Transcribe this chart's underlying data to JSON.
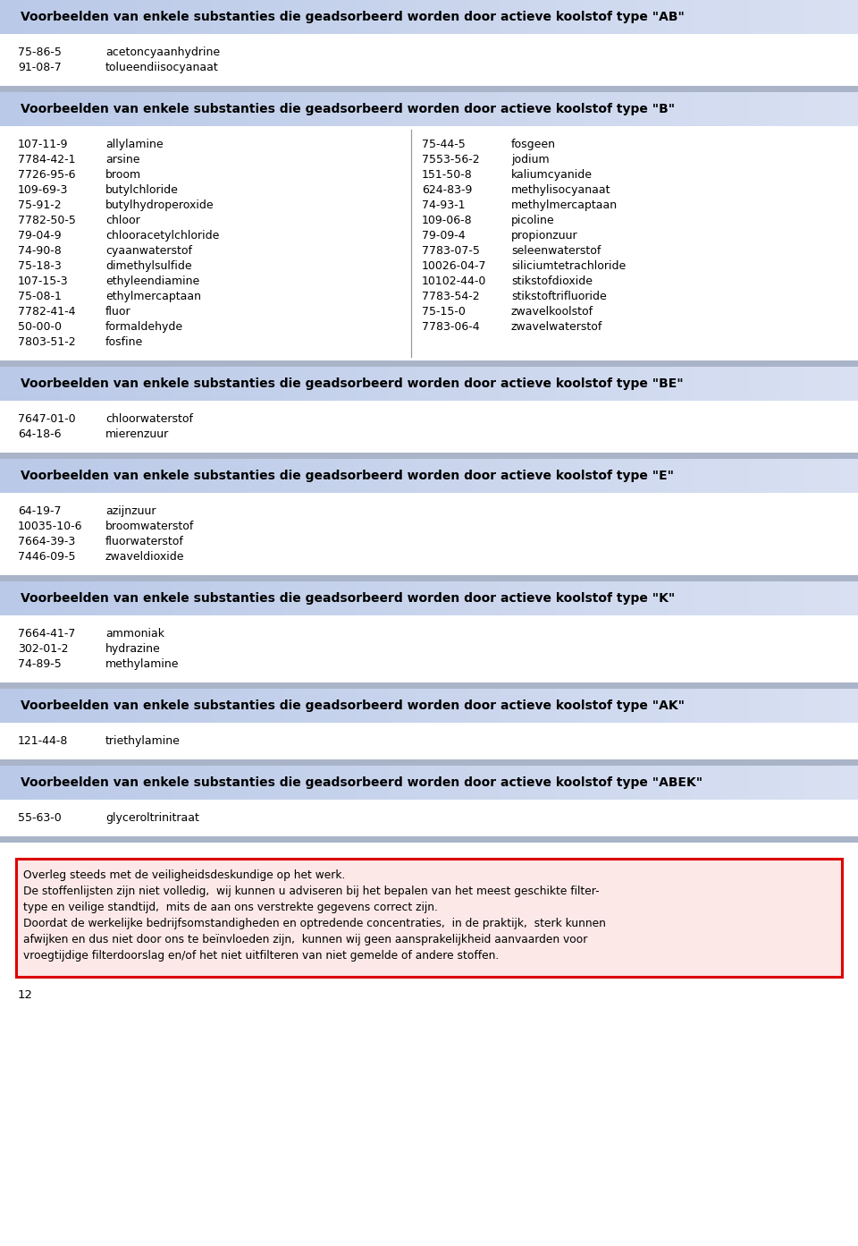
{
  "sections": [
    {
      "title": "Voorbeelden van enkele substanties die geadsorbeerd worden door actieve koolstof type \"AB\"",
      "two_columns": false,
      "items_left": [
        [
          "75-86-5",
          "acetoncyaanhydrine"
        ],
        [
          "91-08-7",
          "tolueendiisocyanaat"
        ]
      ],
      "items_right": []
    },
    {
      "title": "Voorbeelden van enkele substanties die geadsorbeerd worden door actieve koolstof type \"B\"",
      "two_columns": true,
      "items_left": [
        [
          "107-11-9",
          "allylamine"
        ],
        [
          "7784-42-1",
          "arsine"
        ],
        [
          "7726-95-6",
          "broom"
        ],
        [
          "109-69-3",
          "butylchloride"
        ],
        [
          "75-91-2",
          "butylhydroperoxide"
        ],
        [
          "7782-50-5",
          "chloor"
        ],
        [
          "79-04-9",
          "chlooracetylchloride"
        ],
        [
          "74-90-8",
          "cyaanwaterstof"
        ],
        [
          "75-18-3",
          "dimethylsulfide"
        ],
        [
          "107-15-3",
          "ethyleendiamine"
        ],
        [
          "75-08-1",
          "ethylmercaptaan"
        ],
        [
          "7782-41-4",
          "fluor"
        ],
        [
          "50-00-0",
          "formaldehyde"
        ],
        [
          "7803-51-2",
          "fosfine"
        ]
      ],
      "items_right": [
        [
          "75-44-5",
          "fosgeen"
        ],
        [
          "7553-56-2",
          "jodium"
        ],
        [
          "151-50-8",
          "kaliumcyanide"
        ],
        [
          "624-83-9",
          "methylisocyanaat"
        ],
        [
          "74-93-1",
          "methylmercaptaan"
        ],
        [
          "109-06-8",
          "picoline"
        ],
        [
          "79-09-4",
          "propionzuur"
        ],
        [
          "7783-07-5",
          "seleenwaterstof"
        ],
        [
          "10026-04-7",
          "siliciumtetrachloride"
        ],
        [
          "10102-44-0",
          "stikstofdioxide"
        ],
        [
          "7783-54-2",
          "stikstoftrifluoride"
        ],
        [
          "75-15-0",
          "zwavelkoolstof"
        ],
        [
          "7783-06-4",
          "zwavelwaterstof"
        ]
      ]
    },
    {
      "title": "Voorbeelden van enkele substanties die geadsorbeerd worden door actieve koolstof type \"BE\"",
      "two_columns": false,
      "items_left": [
        [
          "7647-01-0",
          "chloorwaterstof"
        ],
        [
          "64-18-6",
          "mierenzuur"
        ]
      ],
      "items_right": []
    },
    {
      "title": "Voorbeelden van enkele substanties die geadsorbeerd worden door actieve koolstof type \"E\"",
      "two_columns": false,
      "items_left": [
        [
          "64-19-7",
          "azijnzuur"
        ],
        [
          "10035-10-6",
          "broomwaterstof"
        ],
        [
          "7664-39-3",
          "fluorwaterstof"
        ],
        [
          "7446-09-5",
          "zwaveldioxide"
        ]
      ],
      "items_right": []
    },
    {
      "title": "Voorbeelden van enkele substanties die geadsorbeerd worden door actieve koolstof type \"K\"",
      "two_columns": false,
      "items_left": [
        [
          "7664-41-7",
          "ammoniak"
        ],
        [
          "302-01-2",
          "hydrazine"
        ],
        [
          "74-89-5",
          "methylamine"
        ]
      ],
      "items_right": []
    },
    {
      "title": "Voorbeelden van enkele substanties die geadsorbeerd worden door actieve koolstof type \"AK\"",
      "two_columns": false,
      "items_left": [
        [
          "121-44-8",
          "triethylamine"
        ]
      ],
      "items_right": []
    },
    {
      "title": "Voorbeelden van enkele substanties die geadsorbeerd worden door actieve koolstof type \"ABEK\"",
      "two_columns": false,
      "items_left": [
        [
          "55-63-0",
          "glyceroltrinitraat"
        ]
      ],
      "items_right": []
    }
  ],
  "footer_lines": [
    "Overleg steeds met de veiligheidsdeskundige op het werk.",
    "De stoffenlijsten zijn niet volledig,  wij kunnen u adviseren bij het bepalen van het meest geschikte filter-",
    "type en veilige standtijd,  mits de aan ons verstrekte gegevens correct zijn.",
    "Doordat de werkelijke bedrijfsomstandigheden en optredende concentraties,  in de praktijk,  sterk kunnen",
    "afwijken en dus niet door ons te beïnvloeden zijn,  kunnen wij geen aansprakelijkheid aanvaarden voor",
    "vroegtijdige filterdoorslag en/of het niet uitfilteren van niet gemelde of andere stoffen."
  ],
  "page_number": "12",
  "header_bg_color": "#c5cfe8",
  "header_text_color": "#000000",
  "body_bg_color": "#ffffff",
  "separator_color": "#aab4c8",
  "text_color": "#000000",
  "footer_bg_color": "#fde8e8",
  "footer_border_color": "#dd0000"
}
